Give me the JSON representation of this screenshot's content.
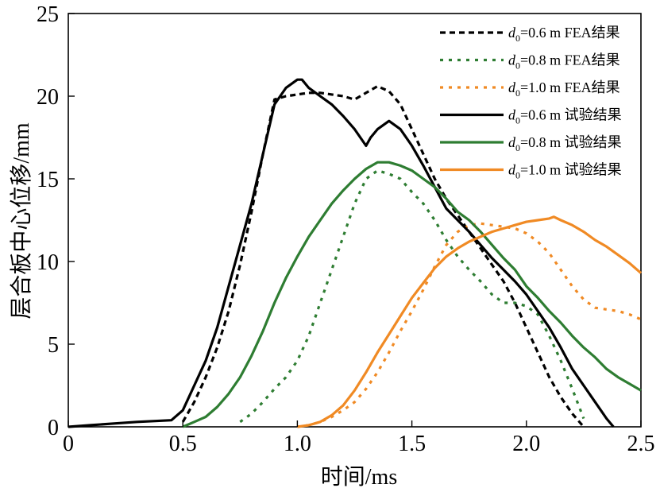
{
  "chart_data": {
    "type": "line",
    "title": "",
    "xlabel": "时间/ms",
    "ylabel": "层合板中心位移/mm",
    "xlim": [
      0,
      2.5
    ],
    "ylim": [
      0,
      25
    ],
    "x_ticks": [
      {
        "value": 0,
        "label": "0"
      },
      {
        "value": 0.5,
        "label": "0.5"
      },
      {
        "value": 1.0,
        "label": "1.0"
      },
      {
        "value": 1.5,
        "label": "1.5"
      },
      {
        "value": 2.0,
        "label": "2.0"
      },
      {
        "value": 2.5,
        "label": "2.5"
      }
    ],
    "y_ticks": [
      {
        "value": 0,
        "label": "0"
      },
      {
        "value": 5,
        "label": "5"
      },
      {
        "value": 10,
        "label": "10"
      },
      {
        "value": 15,
        "label": "15"
      },
      {
        "value": 20,
        "label": "20"
      },
      {
        "value": 25,
        "label": "25"
      }
    ],
    "legend_position": "top-right",
    "series": [
      {
        "legend_var": "d",
        "legend_sub": "0",
        "legend_rest": "=0.6 m FEA结果",
        "name": "d0=0.6 m FEA结果",
        "color": "#000000",
        "style": "dashed",
        "x": [
          0.5,
          0.55,
          0.6,
          0.65,
          0.7,
          0.75,
          0.8,
          0.85,
          0.9,
          0.95,
          1.0,
          1.05,
          1.1,
          1.15,
          1.2,
          1.25,
          1.3,
          1.35,
          1.4,
          1.45,
          1.5,
          1.55,
          1.6,
          1.65,
          1.7,
          1.75,
          1.8,
          1.85,
          1.9,
          1.95,
          2.0,
          2.05,
          2.1,
          2.15,
          2.2,
          2.25
        ],
        "y": [
          0.3,
          1.5,
          3.0,
          4.8,
          7.0,
          9.8,
          13.0,
          16.5,
          19.8,
          20.0,
          20.1,
          20.2,
          20.2,
          20.1,
          20.0,
          19.8,
          20.2,
          20.6,
          20.3,
          19.5,
          18.0,
          16.5,
          15.0,
          13.8,
          12.8,
          11.8,
          10.8,
          9.8,
          8.8,
          7.5,
          6.0,
          4.5,
          3.0,
          1.8,
          0.8,
          0.0
        ]
      },
      {
        "legend_var": "d",
        "legend_sub": "0",
        "legend_rest": "=0.8 m FEA结果",
        "name": "d0=0.8 m FEA结果",
        "color": "#2e7d32",
        "style": "dotted",
        "x": [
          0.75,
          0.8,
          0.85,
          0.9,
          0.95,
          1.0,
          1.05,
          1.1,
          1.15,
          1.2,
          1.25,
          1.3,
          1.35,
          1.4,
          1.45,
          1.5,
          1.55,
          1.6,
          1.65,
          1.7,
          1.75,
          1.8,
          1.85,
          1.9,
          1.95,
          2.0,
          2.05,
          2.1,
          2.15,
          2.2,
          2.25
        ],
        "y": [
          0.3,
          0.8,
          1.5,
          2.3,
          3.0,
          4.0,
          5.5,
          7.5,
          9.5,
          11.5,
          13.5,
          15.0,
          15.5,
          15.3,
          15.0,
          14.2,
          13.5,
          12.5,
          11.3,
          10.3,
          9.5,
          8.8,
          8.0,
          7.5,
          7.5,
          7.3,
          6.8,
          5.5,
          4.0,
          2.3,
          0.5
        ]
      },
      {
        "legend_var": "d",
        "legend_sub": "0",
        "legend_rest": "=1.0 m FEA结果",
        "name": "d0=1.0 m FEA结果",
        "color": "#f08a24",
        "style": "dotted",
        "x": [
          1.0,
          1.05,
          1.1,
          1.15,
          1.2,
          1.25,
          1.3,
          1.35,
          1.4,
          1.45,
          1.5,
          1.55,
          1.6,
          1.65,
          1.7,
          1.75,
          1.8,
          1.85,
          1.9,
          1.95,
          2.0,
          2.05,
          2.1,
          2.15,
          2.2,
          2.25,
          2.3,
          2.35,
          2.4,
          2.45,
          2.5
        ],
        "y": [
          0.0,
          0.1,
          0.3,
          0.6,
          1.0,
          1.5,
          2.3,
          3.3,
          4.5,
          5.8,
          7.0,
          8.3,
          9.7,
          11.0,
          11.8,
          12.2,
          12.3,
          12.2,
          12.1,
          12.0,
          11.7,
          11.2,
          10.5,
          9.5,
          8.5,
          7.7,
          7.2,
          7.1,
          7.0,
          6.8,
          6.5
        ]
      },
      {
        "legend_var": "d",
        "legend_sub": "0",
        "legend_rest": "=0.6 m 试验结果",
        "name": "d0=0.6 m 试验结果",
        "color": "#000000",
        "style": "solid",
        "x": [
          0.0,
          0.1,
          0.2,
          0.3,
          0.45,
          0.5,
          0.55,
          0.6,
          0.65,
          0.7,
          0.75,
          0.8,
          0.85,
          0.9,
          0.95,
          1.0,
          1.02,
          1.05,
          1.1,
          1.15,
          1.2,
          1.25,
          1.3,
          1.32,
          1.35,
          1.4,
          1.45,
          1.5,
          1.55,
          1.6,
          1.65,
          1.7,
          1.75,
          1.8,
          1.85,
          1.9,
          1.95,
          2.0,
          2.05,
          2.1,
          2.15,
          2.2,
          2.25,
          2.3,
          2.35,
          2.38
        ],
        "y": [
          0.0,
          0.1,
          0.2,
          0.3,
          0.4,
          1.0,
          2.5,
          4.0,
          6.0,
          8.5,
          11.0,
          13.5,
          16.5,
          19.5,
          20.5,
          21.0,
          21.0,
          20.5,
          20.0,
          19.5,
          18.8,
          18.0,
          17.0,
          17.5,
          18.0,
          18.5,
          18.0,
          17.0,
          15.8,
          14.5,
          13.2,
          12.5,
          11.8,
          11.0,
          10.2,
          9.5,
          8.8,
          8.0,
          7.0,
          6.0,
          4.8,
          3.5,
          2.5,
          1.5,
          0.5,
          0.0
        ]
      },
      {
        "legend_var": "d",
        "legend_sub": "0",
        "legend_rest": "=0.8 m 试验结果",
        "name": "d0=0.8 m 试验结果",
        "color": "#2e7d32",
        "style": "solid",
        "x": [
          0.5,
          0.55,
          0.6,
          0.65,
          0.7,
          0.75,
          0.8,
          0.85,
          0.9,
          0.95,
          1.0,
          1.05,
          1.1,
          1.15,
          1.2,
          1.25,
          1.3,
          1.35,
          1.4,
          1.45,
          1.5,
          1.55,
          1.6,
          1.65,
          1.7,
          1.75,
          1.8,
          1.85,
          1.9,
          1.95,
          2.0,
          2.05,
          2.1,
          2.15,
          2.2,
          2.25,
          2.3,
          2.35,
          2.4,
          2.45,
          2.5
        ],
        "y": [
          0.0,
          0.3,
          0.6,
          1.2,
          2.0,
          3.0,
          4.3,
          5.8,
          7.5,
          9.0,
          10.3,
          11.5,
          12.5,
          13.5,
          14.3,
          15.0,
          15.6,
          16.0,
          16.0,
          15.8,
          15.5,
          15.0,
          14.5,
          13.8,
          13.0,
          12.5,
          11.8,
          11.0,
          10.2,
          9.5,
          8.5,
          7.8,
          7.0,
          6.3,
          5.5,
          4.8,
          4.2,
          3.5,
          3.0,
          2.6,
          2.2
        ]
      },
      {
        "legend_var": "d",
        "legend_sub": "0",
        "legend_rest": "=1.0 m 试验结果",
        "name": "d0=1.0 m 试验结果",
        "color": "#f08a24",
        "style": "solid",
        "x": [
          1.0,
          1.05,
          1.1,
          1.15,
          1.2,
          1.25,
          1.3,
          1.35,
          1.4,
          1.45,
          1.5,
          1.55,
          1.6,
          1.65,
          1.7,
          1.75,
          1.8,
          1.85,
          1.9,
          1.95,
          2.0,
          2.05,
          2.1,
          2.12,
          2.15,
          2.2,
          2.25,
          2.3,
          2.35,
          2.4,
          2.45,
          2.5
        ],
        "y": [
          0.0,
          0.1,
          0.3,
          0.7,
          1.3,
          2.2,
          3.3,
          4.5,
          5.6,
          6.7,
          7.8,
          8.7,
          9.6,
          10.3,
          10.8,
          11.2,
          11.5,
          11.8,
          12.0,
          12.2,
          12.4,
          12.5,
          12.6,
          12.7,
          12.5,
          12.2,
          11.8,
          11.3,
          10.9,
          10.4,
          9.9,
          9.3
        ]
      }
    ]
  }
}
